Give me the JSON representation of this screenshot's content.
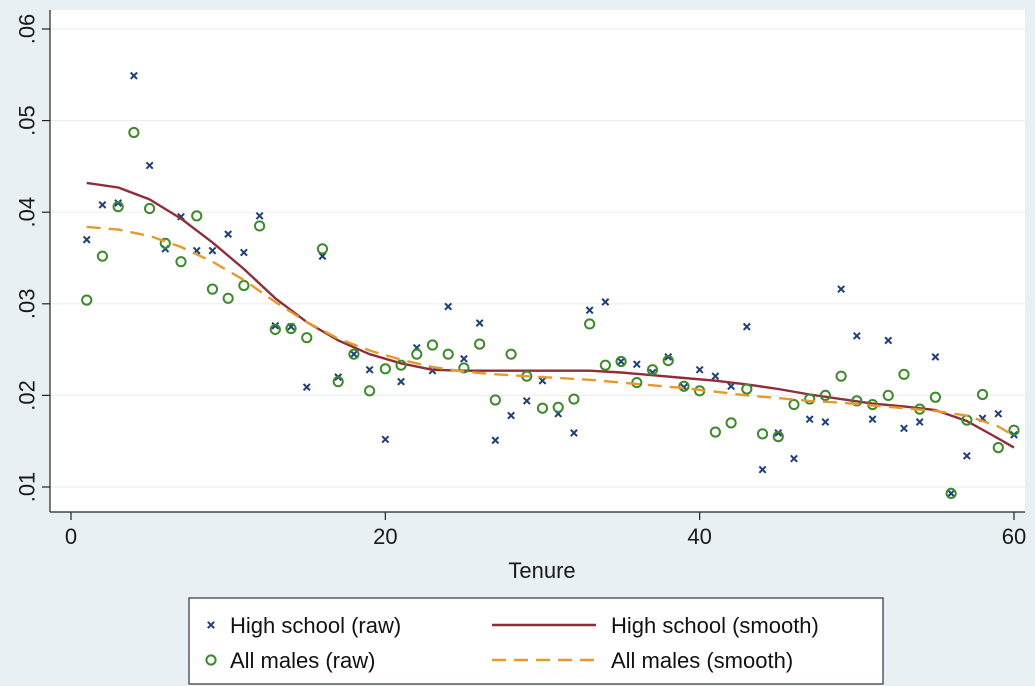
{
  "chart_data": {
    "type": "scatter",
    "title": "",
    "xlabel": "Tenure",
    "ylabel": "",
    "xlim": [
      0,
      60
    ],
    "ylim": [
      0.01,
      0.06
    ],
    "x_ticks": [
      0,
      20,
      40,
      60
    ],
    "x_tick_labels": [
      "0",
      "20",
      "40",
      "60"
    ],
    "y_ticks": [
      0.01,
      0.02,
      0.03,
      0.04,
      0.05,
      0.06
    ],
    "y_tick_labels": [
      ".01",
      ".02",
      ".03",
      ".04",
      ".05",
      ".06"
    ],
    "grid": true,
    "legend_position": "bottom",
    "colors": {
      "background": "#e9f0f3",
      "plot_area": "#ffffff",
      "hs_raw": "#1f3f7a",
      "all_raw": "#3d8a2a",
      "hs_smooth": "#8f2d3a",
      "all_smooth": "#e69a2c"
    },
    "series": [
      {
        "name": "High school (raw)",
        "kind": "markers-x",
        "x": [
          1,
          2,
          3,
          4,
          5,
          6,
          7,
          8,
          9,
          10,
          11,
          12,
          13,
          14,
          15,
          16,
          17,
          18,
          19,
          20,
          21,
          22,
          23,
          24,
          25,
          26,
          27,
          28,
          29,
          30,
          31,
          32,
          33,
          34,
          35,
          36,
          37,
          38,
          39,
          40,
          41,
          42,
          43,
          44,
          45,
          46,
          47,
          48,
          49,
          50,
          51,
          52,
          53,
          54,
          55,
          56,
          57,
          58,
          59,
          60
        ],
        "y": [
          0.037,
          0.0408,
          0.041,
          0.0549,
          0.0451,
          0.036,
          0.0395,
          0.0358,
          0.0358,
          0.0376,
          0.0356,
          0.0396,
          0.0276,
          0.0275,
          0.0209,
          0.0352,
          0.022,
          0.0245,
          0.0228,
          0.0152,
          0.0215,
          0.0252,
          0.0227,
          0.0297,
          0.024,
          0.0279,
          0.0151,
          0.0178,
          0.0194,
          0.0216,
          0.018,
          0.0159,
          0.0293,
          0.0302,
          0.0237,
          0.0234,
          0.0225,
          0.0242,
          0.0209,
          0.0228,
          0.0221,
          0.021,
          0.0275,
          0.0119,
          0.0159,
          0.0131,
          0.0174,
          0.0171,
          0.0316,
          0.0265,
          0.0174,
          0.026,
          0.0164,
          0.0171,
          0.0242,
          0.0093,
          0.0134,
          0.0175,
          0.018,
          0.0157
        ]
      },
      {
        "name": "High school (smooth)",
        "kind": "line-solid",
        "x": [
          1,
          3,
          5,
          7,
          9,
          11,
          13,
          15,
          17,
          19,
          21,
          23,
          25,
          27,
          29,
          31,
          33,
          35,
          37,
          39,
          41,
          43,
          45,
          47,
          49,
          51,
          53,
          55,
          57,
          59,
          60
        ],
        "y": [
          0.0432,
          0.0427,
          0.0414,
          0.0393,
          0.0367,
          0.0338,
          0.0306,
          0.028,
          0.026,
          0.0245,
          0.0235,
          0.0228,
          0.0227,
          0.0227,
          0.0227,
          0.0227,
          0.0227,
          0.0225,
          0.0222,
          0.0219,
          0.0216,
          0.0212,
          0.0207,
          0.0201,
          0.0196,
          0.0191,
          0.0188,
          0.0184,
          0.0172,
          0.0153,
          0.0143
        ]
      },
      {
        "name": "All males (raw)",
        "kind": "markers-o",
        "x": [
          1,
          2,
          3,
          4,
          5,
          6,
          7,
          8,
          9,
          10,
          11,
          12,
          13,
          14,
          15,
          16,
          17,
          18,
          19,
          20,
          21,
          22,
          23,
          24,
          25,
          26,
          27,
          28,
          29,
          30,
          31,
          32,
          33,
          34,
          35,
          36,
          37,
          38,
          39,
          40,
          41,
          42,
          43,
          44,
          45,
          46,
          47,
          48,
          49,
          50,
          51,
          52,
          53,
          54,
          55,
          56,
          57,
          58,
          59,
          60
        ],
        "y": [
          0.0304,
          0.0352,
          0.0406,
          0.0487,
          0.0404,
          0.0366,
          0.0346,
          0.0396,
          0.0316,
          0.0306,
          0.032,
          0.0385,
          0.0272,
          0.0273,
          0.0263,
          0.036,
          0.0215,
          0.0245,
          0.0205,
          0.0229,
          0.0233,
          0.0245,
          0.0255,
          0.0245,
          0.023,
          0.0256,
          0.0195,
          0.0245,
          0.0221,
          0.0186,
          0.0187,
          0.0196,
          0.0278,
          0.0233,
          0.0237,
          0.0214,
          0.0228,
          0.0238,
          0.021,
          0.0205,
          0.016,
          0.017,
          0.0207,
          0.0158,
          0.0155,
          0.019,
          0.0196,
          0.02,
          0.0221,
          0.0194,
          0.019,
          0.02,
          0.0223,
          0.0185,
          0.0198,
          0.0093,
          0.0173,
          0.0201,
          0.0143,
          0.0162
        ]
      },
      {
        "name": "All males (smooth)",
        "kind": "line-dashed",
        "x": [
          1,
          3,
          5,
          7,
          9,
          11,
          13,
          15,
          17,
          19,
          21,
          23,
          25,
          27,
          29,
          31,
          33,
          35,
          37,
          39,
          41,
          43,
          45,
          47,
          49,
          51,
          53,
          55,
          57,
          59,
          60
        ],
        "y": [
          0.0384,
          0.0381,
          0.0374,
          0.0362,
          0.0346,
          0.0326,
          0.0302,
          0.028,
          0.0262,
          0.0249,
          0.0239,
          0.0231,
          0.0226,
          0.0223,
          0.0221,
          0.0219,
          0.0217,
          0.0214,
          0.0211,
          0.0208,
          0.0204,
          0.02,
          0.0197,
          0.0194,
          0.0192,
          0.0189,
          0.0186,
          0.0183,
          0.0178,
          0.0166,
          0.0156
        ]
      }
    ]
  },
  "legend": {
    "items": [
      {
        "label": "High school (raw)",
        "symbol": "x"
      },
      {
        "label": "High school (smooth)",
        "symbol": "solid"
      },
      {
        "label": "All males (raw)",
        "symbol": "o"
      },
      {
        "label": "All males (smooth)",
        "symbol": "dashed"
      }
    ]
  }
}
